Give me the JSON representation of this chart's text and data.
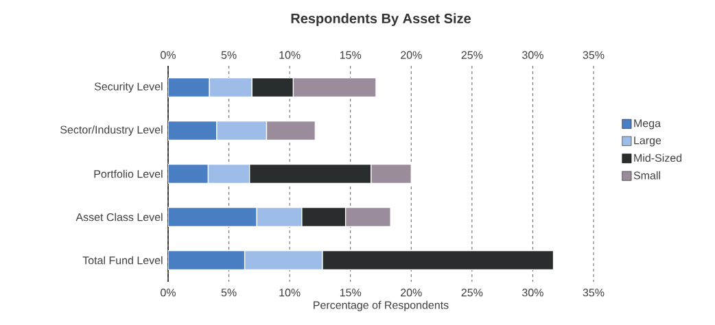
{
  "chart_data": {
    "type": "bar",
    "orientation": "horizontal",
    "stacked": true,
    "title": "Respondents By Asset Size",
    "xlabel": "Percentage of Respondents",
    "categories": [
      "Security Level",
      "Sector/Industry Level",
      "Portfolio Level",
      "Asset Class Level",
      "Total Fund Level"
    ],
    "series": [
      {
        "name": "Mega",
        "color": "#4a7fc4",
        "values": [
          3.4,
          4.0,
          3.3,
          7.3,
          6.3
        ]
      },
      {
        "name": "Large",
        "color": "#9dbde8",
        "values": [
          3.5,
          4.1,
          3.4,
          3.7,
          6.4
        ]
      },
      {
        "name": "Mid-Sized",
        "color": "#2a2d2e",
        "values": [
          3.4,
          null,
          10.0,
          3.6,
          19.0
        ]
      },
      {
        "name": "Small",
        "color": "#9a8c9a",
        "values": [
          6.8,
          4.0,
          3.3,
          3.7,
          null
        ]
      }
    ],
    "xlim": [
      0,
      35
    ],
    "xticks": [
      {
        "value": 0,
        "label": "0%"
      },
      {
        "value": 5,
        "label": "5%"
      },
      {
        "value": 10,
        "label": "10%"
      },
      {
        "value": 15,
        "label": "15%"
      },
      {
        "value": 20,
        "label": "20%"
      },
      {
        "value": 25,
        "label": "25%"
      },
      {
        "value": 30,
        "label": "30%"
      },
      {
        "value": 35,
        "label": "35%"
      }
    ],
    "x2lim": [
      0,
      35
    ],
    "x2ticks": [
      {
        "value": 0,
        "label": "0%"
      },
      {
        "value": 5,
        "label": "5%"
      },
      {
        "value": 10,
        "label": "10%"
      },
      {
        "value": 15,
        "label": "15%"
      },
      {
        "value": 20,
        "label": "20%"
      },
      {
        "value": 25,
        "label": "25%"
      },
      {
        "value": 30,
        "label": "30%"
      },
      {
        "value": 35,
        "label": "35%"
      }
    ],
    "grid": "x",
    "legend": "right"
  }
}
